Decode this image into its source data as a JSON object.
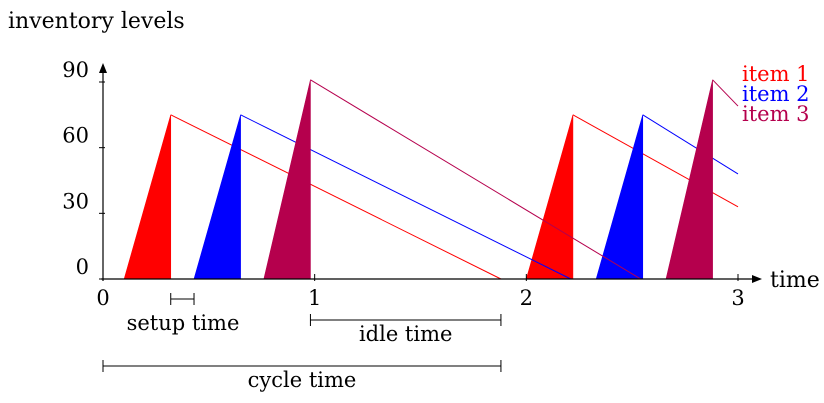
{
  "chart_data": {
    "type": "line",
    "title": "",
    "ylabel": "inventory levels",
    "xlabel": "time",
    "xlim": [
      0,
      3
    ],
    "ylim": [
      0,
      95
    ],
    "x_ticks": [
      {
        "value": 0,
        "label": "0"
      },
      {
        "value": 1,
        "label": "1"
      },
      {
        "value": 2,
        "label": "2"
      },
      {
        "value": 3,
        "label": "3"
      }
    ],
    "y_ticks": [
      {
        "value": 0,
        "label": "0"
      },
      {
        "value": 30,
        "label": "30"
      },
      {
        "value": 60,
        "label": "60"
      },
      {
        "value": 90,
        "label": "90"
      }
    ],
    "series": [
      {
        "name": "item 1",
        "color": "#ff0000",
        "production": [
          [
            0.1,
            0.32
          ],
          [
            2.0,
            2.22
          ]
        ],
        "peak": 75,
        "depletion_end": [
          1.88,
          3.0
        ],
        "depletion_end_value": [
          0,
          33
        ]
      },
      {
        "name": "item 2",
        "color": "#0000ff",
        "production": [
          [
            0.43,
            0.65
          ],
          [
            2.33,
            2.55
          ]
        ],
        "peak": 75,
        "depletion_end": [
          2.21,
          3.0
        ],
        "depletion_end_value": [
          0,
          48
        ]
      },
      {
        "name": "item 3",
        "color": "#b5004d",
        "production": [
          [
            0.76,
            0.98
          ],
          [
            2.66,
            2.88
          ]
        ],
        "peak": 91,
        "depletion_end": [
          2.54,
          3.0
        ],
        "depletion_end_value": [
          0,
          79
        ]
      }
    ],
    "annotations": [
      {
        "label": "setup time",
        "x_start": 0.32,
        "x_end": 0.43,
        "level": 1
      },
      {
        "label": "idle time",
        "x_start": 0.98,
        "x_end": 1.88,
        "level": 1
      },
      {
        "label": "cycle time",
        "x_start": 0.0,
        "x_end": 1.88,
        "level": 2
      }
    ]
  }
}
